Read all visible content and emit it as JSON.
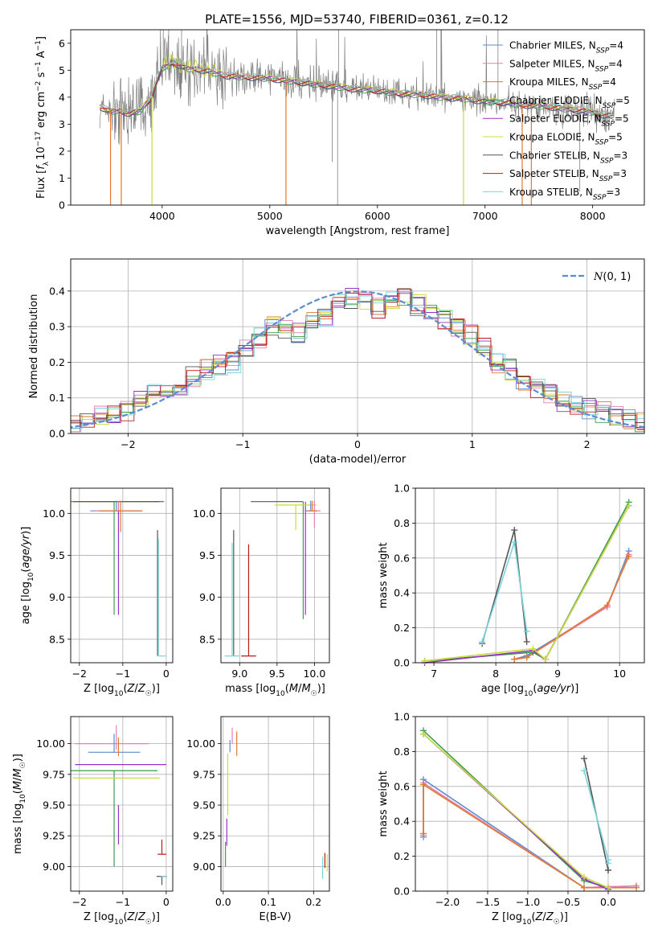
{
  "figure": {
    "title": "PLATE=1556, MJD=53740, FIBERID=0361, z=0.12"
  },
  "colors": {
    "chabrier_miles": "#5b8bd0",
    "salpeter_miles": "#e87fb0",
    "kroupa_miles": "#e07a2e",
    "chabrier_elodie": "#3a9e4a",
    "salpeter_elodie": "#9b30c8",
    "kroupa_elodie": "#c8dc3c",
    "chabrier_stelib": "#555555",
    "salpeter_stelib": "#c01818",
    "kroupa_stelib": "#79d4dc",
    "gaussian": "#5b8bd0",
    "grid": "#b0b0b0"
  },
  "chart_data": [
    {
      "id": "spectrum",
      "type": "line",
      "xlabel": "wavelength [Angstrom, rest frame]",
      "ylabel": "Flux [f_λ 10^-17 erg cm^-2 s^-1 A^-1]",
      "xlim": [
        3150,
        8480
      ],
      "ylim": [
        0,
        6.5
      ],
      "xticks": [
        4000,
        5000,
        6000,
        7000,
        8000
      ],
      "yticks": [
        0,
        1,
        2,
        3,
        4,
        5,
        6
      ],
      "grid": false,
      "legend": "right",
      "series": [
        {
          "name": "Chabrier MILES, N_SSP=4",
          "label_base": "Chabrier MILES, N",
          "label_sub": "SSP",
          "label_tail": "=4",
          "color_key": "chabrier_miles"
        },
        {
          "name": "Salpeter MILES, N_SSP=4",
          "label_base": "Salpeter MILES, N",
          "label_sub": "SSP",
          "label_tail": "=4",
          "color_key": "salpeter_miles"
        },
        {
          "name": "Kroupa MILES, N_SSP=4",
          "label_base": "Kroupa MILES, N",
          "label_sub": "SSP",
          "label_tail": "=4",
          "color_key": "kroupa_miles"
        },
        {
          "name": "Chabrier ELODIE, N_SSP=5",
          "label_base": "Chabrier ELODIE, N",
          "label_sub": "SSP",
          "label_tail": "=5",
          "color_key": "chabrier_elodie"
        },
        {
          "name": "Salpeter ELODIE, N_SSP=5",
          "label_base": "Salpeter ELODIE, N",
          "label_sub": "SSP",
          "label_tail": "=5",
          "color_key": "salpeter_elodie"
        },
        {
          "name": "Kroupa ELODIE, N_SSP=5",
          "label_base": "Kroupa ELODIE, N",
          "label_sub": "SSP",
          "label_tail": "=5",
          "color_key": "kroupa_elodie"
        },
        {
          "name": "Chabrier STELIB, N_SSP=3",
          "label_base": "Chabrier STELIB, N",
          "label_sub": "SSP",
          "label_tail": "=3",
          "color_key": "chabrier_stelib"
        },
        {
          "name": "Salpeter STELIB, N_SSP=3",
          "label_base": "Salpeter STELIB, N",
          "label_sub": "SSP",
          "label_tail": "=3",
          "color_key": "salpeter_stelib"
        },
        {
          "name": "Kroupa STELIB, N_SSP=3",
          "label_base": "Kroupa STELIB, N",
          "label_sub": "SSP",
          "label_tail": "=3",
          "color_key": "kroupa_stelib"
        }
      ],
      "continuum": {
        "x": [
          3400,
          3500,
          3600,
          3700,
          3800,
          3900,
          4000,
          4100,
          4200,
          4400,
          4600,
          4800,
          5000,
          5200,
          5400,
          5600,
          5800,
          6000,
          6200,
          6400,
          6600,
          6800,
          7000,
          7200,
          7400,
          7600,
          7800,
          8000,
          8100,
          8200
        ],
        "y": [
          3.7,
          3.5,
          3.5,
          3.4,
          3.5,
          4.0,
          5.1,
          5.3,
          5.1,
          5.0,
          4.8,
          4.75,
          4.7,
          4.6,
          4.5,
          4.4,
          4.3,
          4.25,
          4.15,
          4.1,
          4.0,
          3.95,
          3.85,
          3.8,
          3.7,
          3.65,
          3.55,
          3.45,
          3.35,
          3.3
        ]
      },
      "dips": [
        {
          "x": 3520,
          "color_key": "kroupa_miles"
        },
        {
          "x": 3620,
          "color_key": "kroupa_miles"
        },
        {
          "x": 3905,
          "color_key": "kroupa_elodie"
        },
        {
          "x": 5150,
          "color_key": "kroupa_miles"
        },
        {
          "x": 6800,
          "color_key": "kroupa_elodie"
        },
        {
          "x": 7345,
          "color_key": "kroupa_miles"
        },
        {
          "x": 7430,
          "color_key": "kroupa_miles"
        }
      ]
    },
    {
      "id": "residuals",
      "type": "histogram",
      "xlabel": "(data-model)/error",
      "ylabel": "Normed distribution",
      "xlim": [
        -2.5,
        2.5
      ],
      "ylim": [
        0,
        0.49
      ],
      "xticks": [
        -2,
        -1,
        0,
        1,
        2
      ],
      "yticks": [
        0.0,
        0.1,
        0.2,
        0.3,
        0.4
      ],
      "grid": true,
      "legend": "top-right",
      "bins": 44,
      "gaussian_label": "N(0,1)",
      "histogram_base": [
        0.02,
        0.03,
        0.05,
        0.06,
        0.06,
        0.09,
        0.11,
        0.12,
        0.13,
        0.16,
        0.18,
        0.19,
        0.2,
        0.24,
        0.27,
        0.3,
        0.29,
        0.28,
        0.32,
        0.33,
        0.36,
        0.38,
        0.37,
        0.35,
        0.38,
        0.38,
        0.36,
        0.34,
        0.32,
        0.3,
        0.28,
        0.25,
        0.2,
        0.18,
        0.15,
        0.13,
        0.11,
        0.09,
        0.08,
        0.07,
        0.06,
        0.05,
        0.04,
        0.03
      ]
    },
    {
      "id": "age_vs_Z",
      "type": "errorbar",
      "xlabel": "Z [log10(Z/Z☉)]",
      "ylabel": "age [log10(age/yr)]",
      "xlim": [
        -2.2,
        0.15
      ],
      "ylim": [
        8.22,
        10.3
      ],
      "xticks": [
        -2,
        -1,
        0
      ],
      "yticks": [
        8.5,
        9.0,
        9.5,
        10.0
      ],
      "grid": true,
      "points": [
        {
          "x": -1.2,
          "y": 10.14,
          "xerr": 1.0,
          "yerr_lo": 1.35,
          "yerr_hi": 0.0,
          "color_key": "chabrier_elodie"
        },
        {
          "x": -1.1,
          "y": 10.14,
          "xerr": 1.05,
          "yerr_lo": 1.35,
          "yerr_hi": 0.0,
          "color_key": "salpeter_elodie"
        },
        {
          "x": -1.2,
          "y": 10.14,
          "xerr": 0.95,
          "yerr_lo": 0.0,
          "yerr_hi": 0.0,
          "color_key": "kroupa_elodie"
        },
        {
          "x": -1.15,
          "y": 10.14,
          "xerr": 1.0,
          "yerr_lo": 0.0,
          "yerr_hi": 0.0,
          "color_key": "chabrier_stelib"
        },
        {
          "x": -1.15,
          "y": 10.03,
          "xerr": 0.6,
          "yerr_lo": 0.0,
          "yerr_hi": 0.12,
          "color_key": "chabrier_miles"
        },
        {
          "x": -1.1,
          "y": 10.03,
          "xerr": 0.55,
          "yerr_lo": 0.0,
          "yerr_hi": 0.12,
          "color_key": "salpeter_miles"
        },
        {
          "x": -1.05,
          "y": 10.03,
          "xerr": 0.5,
          "yerr_lo": 0.25,
          "yerr_hi": 0.12,
          "color_key": "kroupa_miles"
        },
        {
          "x": -0.2,
          "y": 9.8,
          "xerr": 0.0,
          "yerr_lo": 1.5,
          "yerr_hi": 0.0,
          "color_key": "chabrier_stelib"
        },
        {
          "x": -0.18,
          "y": 9.7,
          "xerr": 0.0,
          "yerr_lo": 1.4,
          "yerr_hi": 0.0,
          "color_key": "kroupa_stelib"
        },
        {
          "x": -0.1,
          "y": 8.3,
          "xerr": 0.1,
          "yerr_lo": 0.0,
          "yerr_hi": 0.0,
          "color_key": "kroupa_stelib"
        }
      ]
    },
    {
      "id": "age_vs_mass",
      "type": "errorbar",
      "xlabel": "mass [log10(M/M☉)]",
      "ylabel": "",
      "xlim": [
        8.75,
        10.2
      ],
      "ylim": [
        8.22,
        10.3
      ],
      "xticks": [
        9.0,
        9.5,
        10.0
      ],
      "yticks": [
        8.5,
        9.0,
        9.5,
        10.0
      ],
      "grid": true,
      "points": [
        {
          "x": 9.5,
          "y": 10.14,
          "xerr": 0.35,
          "yerr_lo": 0.0,
          "yerr_hi": 0.0,
          "color_key": "chabrier_stelib"
        },
        {
          "x": 9.85,
          "y": 10.14,
          "xerr": 0.0,
          "yerr_lo": 1.4,
          "yerr_hi": 0.0,
          "color_key": "chabrier_elodie"
        },
        {
          "x": 9.88,
          "y": 10.14,
          "xerr": 0.0,
          "yerr_lo": 1.35,
          "yerr_hi": 0.0,
          "color_key": "salpeter_elodie"
        },
        {
          "x": 9.75,
          "y": 10.1,
          "xerr": 0.28,
          "yerr_lo": 0.3,
          "yerr_hi": 0.0,
          "color_key": "kroupa_elodie"
        },
        {
          "x": 9.95,
          "y": 10.03,
          "xerr": 0.08,
          "yerr_lo": 0.0,
          "yerr_hi": 0.12,
          "color_key": "chabrier_miles"
        },
        {
          "x": 10.0,
          "y": 10.03,
          "xerr": 0.08,
          "yerr_lo": 0.2,
          "yerr_hi": 0.12,
          "color_key": "salpeter_miles"
        },
        {
          "x": 9.97,
          "y": 10.03,
          "xerr": 0.07,
          "yerr_lo": 0.0,
          "yerr_hi": 0.12,
          "color_key": "kroupa_miles"
        },
        {
          "x": 8.92,
          "y": 9.8,
          "xerr": 0.0,
          "yerr_lo": 1.5,
          "yerr_hi": 0.0,
          "color_key": "chabrier_stelib"
        },
        {
          "x": 8.9,
          "y": 9.65,
          "xerr": 0.0,
          "yerr_lo": 1.35,
          "yerr_hi": 0.0,
          "color_key": "kroupa_stelib"
        },
        {
          "x": 9.12,
          "y": 8.3,
          "xerr": 0.1,
          "yerr_lo": 0.0,
          "yerr_hi": 1.33,
          "color_key": "salpeter_stelib"
        },
        {
          "x": 8.9,
          "y": 8.3,
          "xerr": 0.1,
          "yerr_lo": 0.0,
          "yerr_hi": 0.0,
          "color_key": "kroupa_stelib"
        }
      ]
    },
    {
      "id": "weight_vs_age",
      "type": "line",
      "xlabel": "age [log10(age/yr)]",
      "ylabel": "mass weight",
      "xlim": [
        6.7,
        10.4
      ],
      "ylim": [
        0,
        1.0
      ],
      "xticks": [
        7,
        8,
        9,
        10
      ],
      "yticks": [
        0.0,
        0.2,
        0.4,
        0.6,
        0.8,
        1.0
      ],
      "grid": true,
      "series": [
        {
          "color_key": "chabrier_miles",
          "x": [
            8.3,
            8.5,
            9.8,
            10.15
          ],
          "y": [
            0.02,
            0.04,
            0.32,
            0.64
          ]
        },
        {
          "color_key": "salpeter_miles",
          "x": [
            8.3,
            8.5,
            9.8,
            10.15
          ],
          "y": [
            0.02,
            0.03,
            0.32,
            0.62
          ]
        },
        {
          "color_key": "kroupa_miles",
          "x": [
            8.3,
            8.5,
            9.8,
            10.15
          ],
          "y": [
            0.02,
            0.03,
            0.33,
            0.61
          ]
        },
        {
          "color_key": "chabrier_elodie",
          "x": [
            6.85,
            8.6,
            8.8,
            10.15
          ],
          "y": [
            0.01,
            0.06,
            0.02,
            0.92
          ]
        },
        {
          "color_key": "salpeter_elodie",
          "x": [
            6.85,
            8.6,
            8.8,
            10.15
          ],
          "y": [
            0.0,
            0.07,
            0.02,
            0.9
          ]
        },
        {
          "color_key": "kroupa_elodie",
          "x": [
            6.85,
            8.6,
            8.8,
            10.15
          ],
          "y": [
            0.01,
            0.08,
            0.02,
            0.9
          ]
        },
        {
          "color_key": "chabrier_stelib",
          "x": [
            7.78,
            8.3,
            8.5
          ],
          "y": [
            0.11,
            0.76,
            0.12
          ]
        },
        {
          "color_key": "kroupa_stelib",
          "x": [
            7.78,
            8.3,
            8.5
          ],
          "y": [
            0.12,
            0.69,
            0.18
          ]
        }
      ]
    },
    {
      "id": "mass_vs_Z",
      "type": "errorbar",
      "xlabel": "Z [log10(Z/Z☉)]",
      "ylabel": "mass [log10(M/M☉)]",
      "xlim": [
        -2.2,
        0.15
      ],
      "ylim": [
        8.8,
        10.22
      ],
      "xticks": [
        -2,
        -1,
        0
      ],
      "yticks": [
        9.0,
        9.25,
        9.5,
        9.75,
        10.0
      ],
      "grid": true,
      "points": [
        {
          "x": -1.25,
          "y": 10.0,
          "xerr": 0.85,
          "yerr_lo": 0.0,
          "yerr_hi": 0.0,
          "color_key": "salpeter_miles"
        },
        {
          "x": -1.2,
          "y": 9.93,
          "xerr": 0.6,
          "yerr_lo": 0.0,
          "yerr_hi": 0.15,
          "color_key": "chabrier_miles"
        },
        {
          "x": -1.15,
          "y": 9.95,
          "xerr": 0.0,
          "yerr_lo": 0.0,
          "yerr_hi": 0.2,
          "color_key": "salpeter_miles"
        },
        {
          "x": -1.1,
          "y": 9.9,
          "xerr": 0.0,
          "yerr_lo": 0.0,
          "yerr_hi": 0.15,
          "color_key": "kroupa_miles"
        },
        {
          "x": -1.05,
          "y": 9.83,
          "xerr": 1.05,
          "yerr_lo": 0.0,
          "yerr_hi": 0.0,
          "color_key": "salpeter_elodie"
        },
        {
          "x": -1.2,
          "y": 9.78,
          "xerr": 1.0,
          "yerr_lo": 0.78,
          "yerr_hi": 0.0,
          "color_key": "chabrier_elodie"
        },
        {
          "x": -1.15,
          "y": 9.72,
          "xerr": 1.0,
          "yerr_lo": 0.0,
          "yerr_hi": 0.0,
          "color_key": "kroupa_elodie"
        },
        {
          "x": -1.1,
          "y": 9.5,
          "xerr": 0.0,
          "yerr_lo": 0.32,
          "yerr_hi": 0.0,
          "color_key": "salpeter_elodie"
        },
        {
          "x": -0.1,
          "y": 9.1,
          "xerr": 0.1,
          "yerr_lo": 0.0,
          "yerr_hi": 0.12,
          "color_key": "salpeter_stelib"
        },
        {
          "x": -0.1,
          "y": 8.92,
          "xerr": 0.12,
          "yerr_lo": 0.07,
          "yerr_hi": 0.0,
          "color_key": "chabrier_stelib"
        },
        {
          "x": -0.05,
          "y": 8.92,
          "xerr": 0.07,
          "yerr_lo": 0.0,
          "yerr_hi": 0.0,
          "color_key": "kroupa_stelib"
        }
      ]
    },
    {
      "id": "mass_vs_EBV",
      "type": "errorbar",
      "xlabel": "E(B-V)",
      "ylabel": "",
      "xlim": [
        -0.005,
        0.235
      ],
      "ylim": [
        8.8,
        10.22
      ],
      "xticks": [
        0.0,
        0.1,
        0.2
      ],
      "yticks": [
        9.0,
        9.25,
        9.5,
        9.75,
        10.0
      ],
      "grid": true,
      "points": [
        {
          "x": 0.02,
          "y": 10.05,
          "xerr": 0.0,
          "yerr_lo": 0.05,
          "yerr_hi": 0.08,
          "color_key": "salpeter_miles"
        },
        {
          "x": 0.03,
          "y": 10.0,
          "xerr": 0.0,
          "yerr_lo": 0.1,
          "yerr_hi": 0.1,
          "color_key": "kroupa_miles"
        },
        {
          "x": 0.015,
          "y": 9.98,
          "xerr": 0.0,
          "yerr_lo": 0.05,
          "yerr_hi": 0.05,
          "color_key": "chabrier_miles"
        },
        {
          "x": 0.01,
          "y": 9.72,
          "xerr": 0.0,
          "yerr_lo": 0.3,
          "yerr_hi": 0.2,
          "color_key": "kroupa_elodie"
        },
        {
          "x": 0.008,
          "y": 9.27,
          "xerr": 0.0,
          "yerr_lo": 0.1,
          "yerr_hi": 0.12,
          "color_key": "salpeter_elodie"
        },
        {
          "x": 0.005,
          "y": 9.1,
          "xerr": 0.0,
          "yerr_lo": 0.1,
          "yerr_hi": 0.1,
          "color_key": "chabrier_elodie"
        },
        {
          "x": 0.22,
          "y": 8.98,
          "xerr": 0.0,
          "yerr_lo": 0.08,
          "yerr_hi": 0.1,
          "color_key": "kroupa_stelib"
        },
        {
          "x": 0.225,
          "y": 9.05,
          "xerr": 0.0,
          "yerr_lo": 0.06,
          "yerr_hi": 0.06,
          "color_key": "salpeter_stelib"
        },
        {
          "x": 0.23,
          "y": 9.03,
          "xerr": 0.0,
          "yerr_lo": 0.07,
          "yerr_hi": 0.07,
          "color_key": "kroupa_elodie"
        }
      ]
    },
    {
      "id": "weight_vs_Z",
      "type": "line",
      "xlabel": "Z [log10(Z/Z☉)]",
      "ylabel": "mass weight",
      "xlim": [
        -2.4,
        0.45
      ],
      "ylim": [
        0,
        1.0
      ],
      "xticks": [
        -2.0,
        -1.5,
        -1.0,
        -0.5,
        0.0
      ],
      "yticks": [
        0.0,
        0.2,
        0.4,
        0.6,
        0.8,
        1.0
      ],
      "grid": true,
      "series": [
        {
          "color_key": "chabrier_miles",
          "x": [
            -2.3,
            -2.3,
            -0.3,
            0.35
          ],
          "y": [
            0.31,
            0.64,
            0.02,
            0.03
          ]
        },
        {
          "color_key": "salpeter_miles",
          "x": [
            -2.3,
            -2.3,
            -0.3,
            0.35
          ],
          "y": [
            0.32,
            0.62,
            0.02,
            0.03
          ]
        },
        {
          "color_key": "kroupa_miles",
          "x": [
            -2.3,
            -2.3,
            -0.3,
            0.35
          ],
          "y": [
            0.33,
            0.61,
            0.02,
            0.02
          ]
        },
        {
          "color_key": "chabrier_elodie",
          "x": [
            -2.3,
            -0.3,
            0.0
          ],
          "y": [
            0.92,
            0.06,
            0.02
          ]
        },
        {
          "color_key": "salpeter_elodie",
          "x": [
            -2.3,
            -0.3,
            0.0
          ],
          "y": [
            0.9,
            0.07,
            0.01
          ]
        },
        {
          "color_key": "kroupa_elodie",
          "x": [
            -2.3,
            -0.3,
            0.0
          ],
          "y": [
            0.9,
            0.08,
            0.02
          ]
        },
        {
          "color_key": "chabrier_stelib",
          "x": [
            -0.3,
            0.0,
            0.0
          ],
          "y": [
            0.76,
            0.12,
            0.12
          ]
        },
        {
          "color_key": "kroupa_stelib",
          "x": [
            -0.3,
            0.0,
            0.0
          ],
          "y": [
            0.69,
            0.18,
            0.16
          ]
        }
      ]
    }
  ]
}
